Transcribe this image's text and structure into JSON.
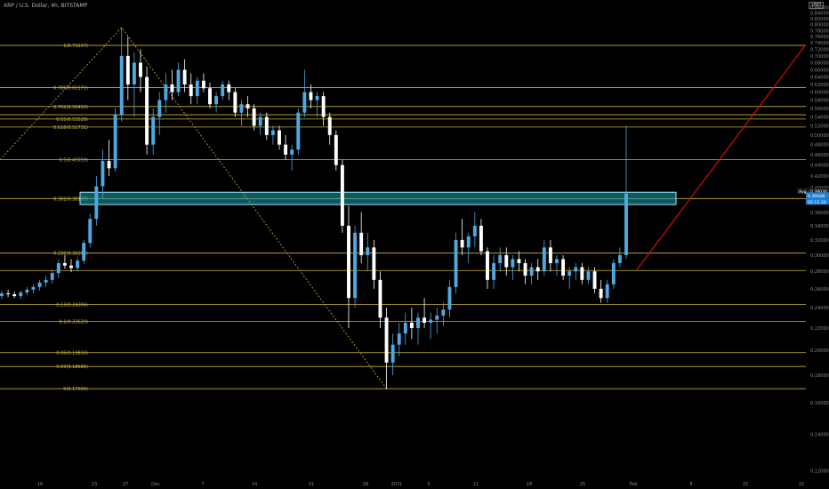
{
  "header": {
    "symbol_title": "XRP / U.S. Dollar, 4h, BITSTAMP"
  },
  "corner_label": "USD",
  "colors": {
    "background": "#000000",
    "fib_line": "#c8b23c",
    "fib_label": "#d4b84a",
    "candle_up": "#4fa8e0",
    "candle_down": "#ffffff",
    "zone_fill": "#1aa0b4",
    "trend_dash": "#b8a233",
    "trend_red": "#cc1111",
    "axis_text": "#8a8a8a",
    "price_tag": "#1e7fd6"
  },
  "chart_data": {
    "type": "candlestick",
    "title": "XRP / U.S. Dollar, 4h, BITSTAMP",
    "xlabel": "",
    "ylabel": "",
    "y_scale": "log",
    "ylim": [
      0.117,
      0.868
    ],
    "grid": false,
    "y_ticks": [
      "0.86000",
      "0.84000",
      "0.82000",
      "0.80000",
      "0.78000",
      "0.76000",
      "0.74000",
      "0.72000",
      "0.70000",
      "0.68000",
      "0.66000",
      "0.64000",
      "0.62000",
      "0.60000",
      "0.58000",
      "0.56000",
      "0.54000",
      "0.52000",
      "0.50000",
      "0.48000",
      "0.46000",
      "0.44000",
      "0.42000",
      "0.40000",
      "0.38000",
      "0.36000",
      "0.34000",
      "0.32000",
      "0.30000",
      "0.28000",
      "0.26000",
      "0.24000",
      "0.22000",
      "0.20000",
      "0.18000",
      "0.16000",
      "0.14000",
      "0.12000"
    ],
    "x_ticks": [
      "16",
      "23",
      "27",
      "Dec",
      "7",
      "14",
      "21",
      "28",
      "2021",
      "5",
      "11",
      "18",
      "25",
      "Feb",
      "8",
      "15",
      "22"
    ],
    "fib_levels": [
      {
        "label": "1(0.73197)",
        "value": 0.73197
      },
      {
        "label": "0.786(0.61171)",
        "value": 0.61171
      },
      {
        "label": "0.702(0.56450)",
        "value": 0.5645
      },
      {
        "label": "0.65(0.53528)",
        "value": 0.53528
      },
      {
        "label": "0.618(0.51731)",
        "value": 0.51731
      },
      {
        "label": "0.5(0.45059)",
        "value": 0.45059
      },
      {
        "label": "0.382(0.38167)",
        "value": 0.38167
      },
      {
        "label": "0.236(0.30262)",
        "value": 0.30262
      },
      {
        "label": "0.13(0.24306)",
        "value": 0.24306
      },
      {
        "label": "0.1(0.22620)",
        "value": 0.2262
      },
      {
        "label": "0.05(0.19810)",
        "value": 0.1981
      },
      {
        "label": "0.03(0.18686)",
        "value": 0.18686
      },
      {
        "label": "0(0.17000)",
        "value": 0.17
      }
    ],
    "extra_levels": [
      0.545,
      0.281
    ],
    "zone": {
      "low": 0.372,
      "high": 0.392
    },
    "price_tags": [
      "Avg · 0.39030",
      "0.39048",
      "02:11:30"
    ],
    "candles": [
      [
        0.252,
        0.258,
        0.249,
        0.255
      ],
      [
        0.255,
        0.259,
        0.251,
        0.254
      ],
      [
        0.254,
        0.257,
        0.25,
        0.252
      ],
      [
        0.252,
        0.258,
        0.249,
        0.256
      ],
      [
        0.256,
        0.262,
        0.253,
        0.259
      ],
      [
        0.259,
        0.265,
        0.255,
        0.262
      ],
      [
        0.262,
        0.27,
        0.258,
        0.267
      ],
      [
        0.267,
        0.275,
        0.262,
        0.27
      ],
      [
        0.27,
        0.282,
        0.266,
        0.278
      ],
      [
        0.278,
        0.294,
        0.272,
        0.29
      ],
      [
        0.29,
        0.3,
        0.283,
        0.287
      ],
      [
        0.287,
        0.295,
        0.279,
        0.284
      ],
      [
        0.284,
        0.297,
        0.28,
        0.293
      ],
      [
        0.293,
        0.32,
        0.289,
        0.316
      ],
      [
        0.316,
        0.358,
        0.31,
        0.35
      ],
      [
        0.35,
        0.42,
        0.34,
        0.402
      ],
      [
        0.402,
        0.47,
        0.382,
        0.448
      ],
      [
        0.448,
        0.49,
        0.42,
        0.434
      ],
      [
        0.434,
        0.56,
        0.428,
        0.545
      ],
      [
        0.545,
        0.79,
        0.53,
        0.7
      ],
      [
        0.7,
        0.76,
        0.58,
        0.62
      ],
      [
        0.62,
        0.71,
        0.54,
        0.68
      ],
      [
        0.68,
        0.72,
        0.6,
        0.64
      ],
      [
        0.64,
        0.67,
        0.46,
        0.48
      ],
      [
        0.48,
        0.56,
        0.46,
        0.54
      ],
      [
        0.54,
        0.6,
        0.5,
        0.58
      ],
      [
        0.58,
        0.65,
        0.55,
        0.62
      ],
      [
        0.62,
        0.66,
        0.58,
        0.6
      ],
      [
        0.6,
        0.68,
        0.59,
        0.66
      ],
      [
        0.66,
        0.69,
        0.6,
        0.62
      ],
      [
        0.62,
        0.65,
        0.57,
        0.59
      ],
      [
        0.59,
        0.64,
        0.57,
        0.63
      ],
      [
        0.63,
        0.65,
        0.6,
        0.61
      ],
      [
        0.61,
        0.625,
        0.56,
        0.57
      ],
      [
        0.57,
        0.6,
        0.55,
        0.59
      ],
      [
        0.59,
        0.63,
        0.58,
        0.62
      ],
      [
        0.62,
        0.63,
        0.58,
        0.6
      ],
      [
        0.6,
        0.61,
        0.54,
        0.55
      ],
      [
        0.55,
        0.58,
        0.52,
        0.57
      ],
      [
        0.57,
        0.59,
        0.54,
        0.56
      ],
      [
        0.56,
        0.57,
        0.51,
        0.52
      ],
      [
        0.52,
        0.55,
        0.5,
        0.54
      ],
      [
        0.54,
        0.55,
        0.49,
        0.5
      ],
      [
        0.5,
        0.52,
        0.48,
        0.51
      ],
      [
        0.51,
        0.52,
        0.47,
        0.48
      ],
      [
        0.48,
        0.5,
        0.45,
        0.46
      ],
      [
        0.46,
        0.48,
        0.43,
        0.47
      ],
      [
        0.47,
        0.56,
        0.46,
        0.55
      ],
      [
        0.55,
        0.66,
        0.54,
        0.6
      ],
      [
        0.6,
        0.62,
        0.56,
        0.58
      ],
      [
        0.58,
        0.6,
        0.54,
        0.59
      ],
      [
        0.59,
        0.6,
        0.52,
        0.54
      ],
      [
        0.54,
        0.55,
        0.48,
        0.5
      ],
      [
        0.5,
        0.51,
        0.43,
        0.44
      ],
      [
        0.44,
        0.45,
        0.33,
        0.34
      ],
      [
        0.34,
        0.37,
        0.22,
        0.25
      ],
      [
        0.25,
        0.34,
        0.24,
        0.33
      ],
      [
        0.33,
        0.36,
        0.29,
        0.3
      ],
      [
        0.3,
        0.33,
        0.28,
        0.31
      ],
      [
        0.31,
        0.32,
        0.26,
        0.27
      ],
      [
        0.27,
        0.28,
        0.22,
        0.23
      ],
      [
        0.23,
        0.24,
        0.17,
        0.19
      ],
      [
        0.19,
        0.215,
        0.18,
        0.205
      ],
      [
        0.205,
        0.225,
        0.195,
        0.215
      ],
      [
        0.215,
        0.235,
        0.205,
        0.225
      ],
      [
        0.225,
        0.24,
        0.21,
        0.22
      ],
      [
        0.22,
        0.235,
        0.205,
        0.23
      ],
      [
        0.23,
        0.25,
        0.22,
        0.225
      ],
      [
        0.225,
        0.235,
        0.21,
        0.228
      ],
      [
        0.228,
        0.24,
        0.215,
        0.232
      ],
      [
        0.232,
        0.245,
        0.222,
        0.238
      ],
      [
        0.238,
        0.27,
        0.23,
        0.262
      ],
      [
        0.262,
        0.33,
        0.255,
        0.32
      ],
      [
        0.32,
        0.35,
        0.3,
        0.31
      ],
      [
        0.31,
        0.33,
        0.29,
        0.325
      ],
      [
        0.325,
        0.36,
        0.31,
        0.34
      ],
      [
        0.34,
        0.35,
        0.3,
        0.305
      ],
      [
        0.305,
        0.31,
        0.26,
        0.27
      ],
      [
        0.27,
        0.3,
        0.26,
        0.29
      ],
      [
        0.29,
        0.31,
        0.28,
        0.3
      ],
      [
        0.3,
        0.31,
        0.275,
        0.285
      ],
      [
        0.285,
        0.3,
        0.27,
        0.295
      ],
      [
        0.295,
        0.305,
        0.28,
        0.29
      ],
      [
        0.29,
        0.295,
        0.265,
        0.275
      ],
      [
        0.275,
        0.29,
        0.265,
        0.285
      ],
      [
        0.285,
        0.295,
        0.27,
        0.28
      ],
      [
        0.28,
        0.32,
        0.275,
        0.31
      ],
      [
        0.31,
        0.32,
        0.28,
        0.29
      ],
      [
        0.29,
        0.3,
        0.275,
        0.295
      ],
      [
        0.295,
        0.3,
        0.27,
        0.275
      ],
      [
        0.275,
        0.285,
        0.26,
        0.28
      ],
      [
        0.28,
        0.29,
        0.27,
        0.285
      ],
      [
        0.285,
        0.29,
        0.265,
        0.27
      ],
      [
        0.27,
        0.285,
        0.265,
        0.28
      ],
      [
        0.28,
        0.285,
        0.255,
        0.26
      ],
      [
        0.26,
        0.27,
        0.245,
        0.25
      ],
      [
        0.25,
        0.27,
        0.245,
        0.265
      ],
      [
        0.265,
        0.295,
        0.26,
        0.29
      ],
      [
        0.29,
        0.31,
        0.285,
        0.3
      ],
      [
        0.3,
        0.52,
        0.295,
        0.39
      ]
    ]
  }
}
